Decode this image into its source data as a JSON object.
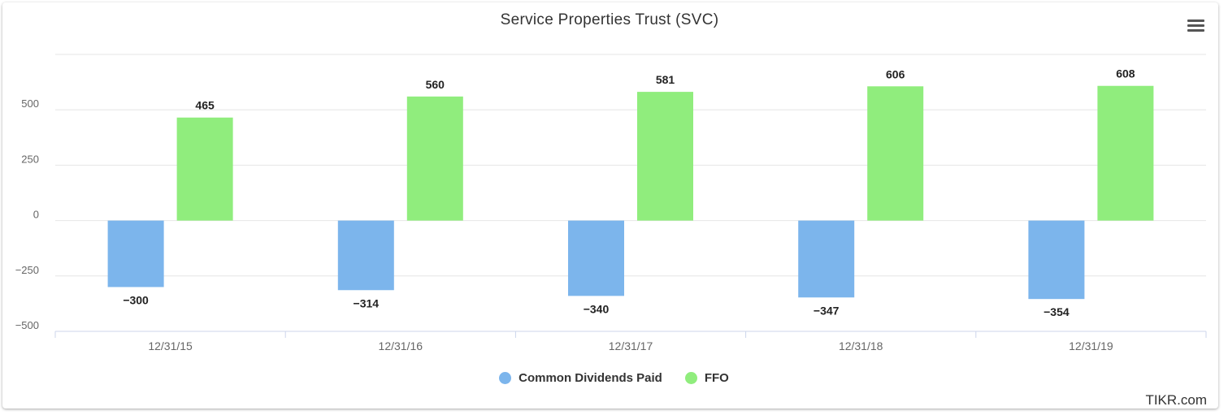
{
  "chart_data": {
    "type": "bar",
    "title": "Service Properties Trust (SVC)",
    "categories": [
      "12/31/15",
      "12/31/16",
      "12/31/17",
      "12/31/18",
      "12/31/19"
    ],
    "series": [
      {
        "name": "Common Dividends Paid",
        "color": "#7cb5ec",
        "values": [
          -300,
          -314,
          -340,
          -347,
          -354
        ]
      },
      {
        "name": "FFO",
        "color": "#90ed7d",
        "values": [
          465,
          560,
          581,
          606,
          608
        ]
      }
    ],
    "yticks": [
      -500,
      -250,
      0,
      250,
      500
    ],
    "ylim": [
      -500,
      750
    ],
    "grid": true,
    "legend_position": "bottom-center",
    "data_labels": true
  },
  "menu": {
    "icon": "hamburger-menu-icon"
  },
  "credit": "TIKR.com"
}
